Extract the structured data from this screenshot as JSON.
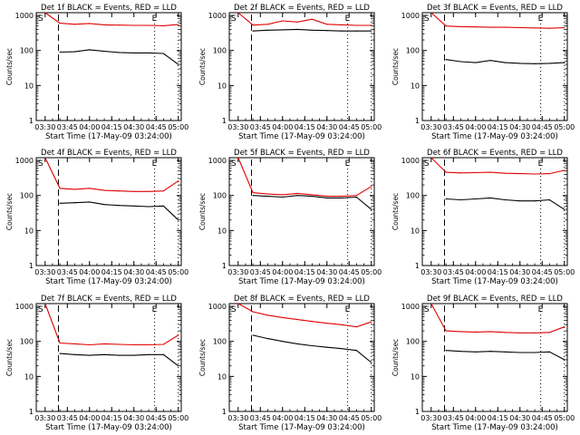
{
  "chart_data": [
    {
      "title": "Det 1f BLACK = Events, RED = LLD",
      "xlabel": "Start Time (17-May-09 03:24:00)",
      "ylabel": "Counts/sec",
      "series": [
        {
          "color": "#000000",
          "y": [
            90,
            92,
            105,
            95,
            88,
            85,
            85,
            82,
            40
          ]
        },
        {
          "color": "#e00000",
          "y": [
            600,
            560,
            590,
            540,
            530,
            520,
            520,
            510,
            550
          ]
        }
      ]
    },
    {
      "title": "Det 2f BLACK = Events, RED = LLD",
      "xlabel": "Start Time (17-May-09 03:24:00)",
      "ylabel": "Counts/sec",
      "series": [
        {
          "color": "#000000",
          "y": [
            360,
            380,
            390,
            400,
            380,
            370,
            360,
            360,
            360
          ]
        },
        {
          "color": "#e00000",
          "y": [
            530,
            560,
            700,
            650,
            780,
            560,
            540,
            520,
            520
          ]
        }
      ]
    },
    {
      "title": "Det 3f BLACK = Events, RED = LLD",
      "xlabel": "Start Time (17-May-09 03:24:00)",
      "ylabel": "Counts/sec",
      "series": [
        {
          "color": "#000000",
          "y": [
            55,
            48,
            45,
            52,
            45,
            43,
            42,
            43,
            45
          ]
        },
        {
          "color": "#e00000",
          "y": [
            500,
            480,
            470,
            460,
            460,
            450,
            440,
            430,
            450
          ]
        }
      ]
    },
    {
      "title": "Det 4f BLACK = Events, RED = LLD",
      "xlabel": "Start Time (17-May-09 03:24:00)",
      "ylabel": "Counts/sec",
      "series": [
        {
          "color": "#000000",
          "y": [
            60,
            62,
            65,
            55,
            52,
            50,
            48,
            50,
            20
          ]
        },
        {
          "color": "#e00000",
          "y": [
            160,
            150,
            160,
            140,
            135,
            130,
            130,
            135,
            260
          ]
        }
      ]
    },
    {
      "title": "Det 5f BLACK = Events, RED = LLD",
      "xlabel": "Start Time (17-May-09 03:24:00)",
      "ylabel": "Counts/sec",
      "series": [
        {
          "color": "#000000",
          "y": [
            100,
            95,
            90,
            100,
            95,
            85,
            85,
            90,
            40
          ]
        },
        {
          "color": "#e00000",
          "y": [
            120,
            110,
            105,
            115,
            105,
            95,
            95,
            100,
            180
          ]
        }
      ]
    },
    {
      "title": "Det 6f BLACK = Events, RED = LLD",
      "xlabel": "Start Time (17-May-09 03:24:00)",
      "ylabel": "Counts/sec",
      "series": [
        {
          "color": "#000000",
          "y": [
            80,
            75,
            80,
            85,
            75,
            70,
            70,
            75,
            40
          ]
        },
        {
          "color": "#e00000",
          "y": [
            460,
            440,
            450,
            460,
            430,
            420,
            410,
            420,
            520
          ]
        }
      ]
    },
    {
      "title": "Det 7f BLACK = Events, RED = LLD",
      "xlabel": "Start Time (17-May-09 03:24:00)",
      "ylabel": "Counts/sec",
      "series": [
        {
          "color": "#000000",
          "y": [
            45,
            42,
            40,
            42,
            40,
            40,
            42,
            42,
            20
          ]
        },
        {
          "color": "#e00000",
          "y": [
            90,
            85,
            80,
            85,
            82,
            80,
            80,
            82,
            150
          ]
        }
      ]
    },
    {
      "title": "Det 8f BLACK = Events, RED = LLD",
      "xlabel": "Start Time (17-May-09 03:24:00)",
      "ylabel": "Counts/sec",
      "series": [
        {
          "color": "#000000",
          "y": [
            150,
            120,
            100,
            85,
            75,
            68,
            62,
            55,
            25
          ]
        },
        {
          "color": "#e00000",
          "y": [
            700,
            560,
            480,
            420,
            370,
            330,
            300,
            260,
            360
          ]
        }
      ]
    },
    {
      "title": "Det 9f BLACK = Events, RED = LLD",
      "xlabel": "Start Time (17-May-09 03:24:00)",
      "ylabel": "Counts/sec",
      "series": [
        {
          "color": "#000000",
          "y": [
            55,
            52,
            50,
            52,
            50,
            48,
            48,
            50,
            30
          ]
        },
        {
          "color": "#e00000",
          "y": [
            200,
            190,
            185,
            190,
            180,
            175,
            175,
            180,
            260
          ]
        }
      ]
    }
  ],
  "shared": {
    "type": "line",
    "x": [
      "03:40",
      "03:50",
      "04:00",
      "04:10",
      "04:20",
      "04:30",
      "04:40",
      "04:50",
      "05:00"
    ],
    "xticks": [
      "03:30",
      "03:45",
      "04:00",
      "04:15",
      "04:30",
      "04:45",
      "05:00"
    ],
    "yticks": [
      "1",
      "10",
      "100",
      "1000"
    ],
    "ylim": [
      1,
      1200
    ],
    "yscale": "log",
    "start_marker": "S",
    "end_marker": "E"
  }
}
